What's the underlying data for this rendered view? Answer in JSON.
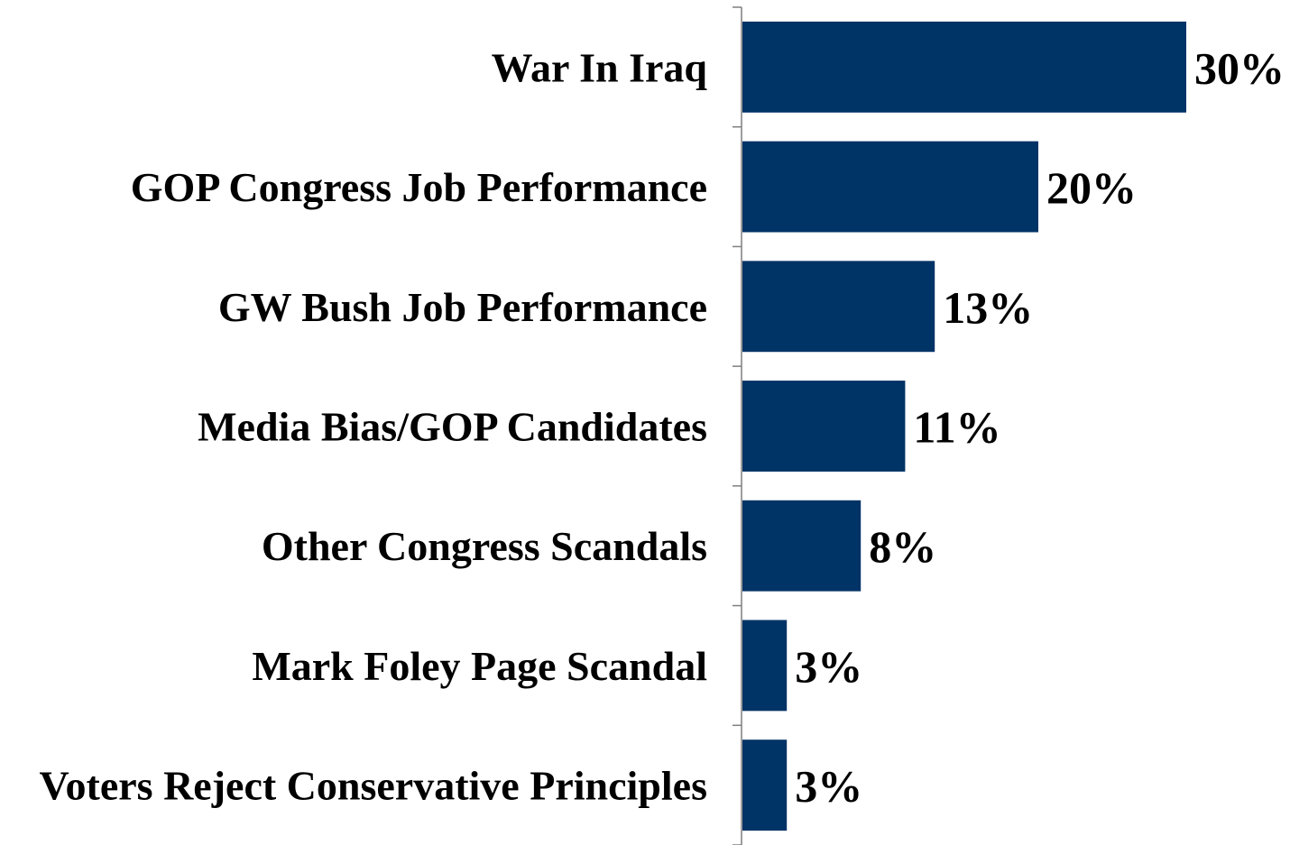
{
  "chart_data": {
    "type": "bar",
    "orientation": "horizontal",
    "categories": [
      "War In Iraq",
      "GOP Congress Job Performance",
      "GW Bush Job Performance",
      "Media Bias/GOP Candidates",
      "Other Congress Scandals",
      "Mark Foley Page Scandal",
      "Voters Reject Conservative Principles"
    ],
    "values": [
      30,
      20,
      13,
      11,
      8,
      3,
      3
    ],
    "value_labels": [
      "30%",
      "20%",
      "13%",
      "11%",
      "8%",
      "3%",
      "3%"
    ],
    "bar_color": "#003366",
    "xlim": [
      0,
      30
    ],
    "grid": false,
    "legend": "none"
  }
}
